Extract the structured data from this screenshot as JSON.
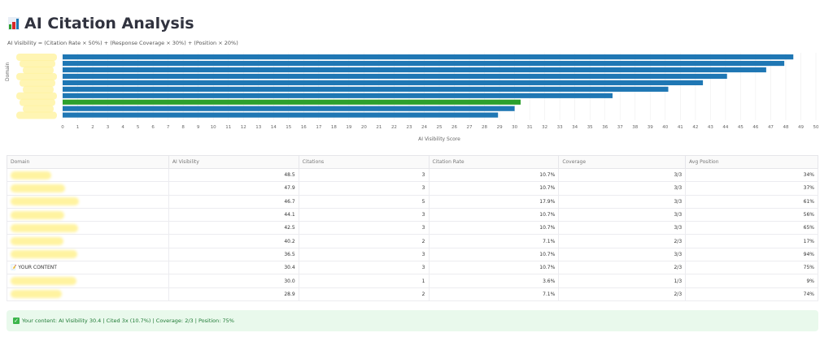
{
  "title": "AI Citation Analysis",
  "title_icon": "bar-chart-icon",
  "formula": "AI Visibility = (Citation Rate × 50%) + (Response Coverage × 30%) + (Position × 20%)",
  "colors": {
    "bar": "#1f77b4",
    "highlight": "#2ca02c",
    "banner_bg": "#e9f9ec",
    "banner_text": "#1f7a35"
  },
  "chart_data": {
    "type": "bar",
    "orientation": "horizontal",
    "xlabel": "AI Visibility Score",
    "ylabel": "Domain",
    "xlim": [
      0,
      50
    ],
    "ticks": [
      0,
      1,
      2,
      3,
      4,
      5,
      6,
      7,
      8,
      9,
      10,
      11,
      12,
      13,
      14,
      15,
      16,
      17,
      18,
      19,
      20,
      21,
      22,
      23,
      24,
      25,
      26,
      27,
      28,
      29,
      30,
      31,
      32,
      33,
      34,
      35,
      36,
      37,
      38,
      39,
      40,
      41,
      42,
      43,
      44,
      45,
      46,
      47,
      48,
      49,
      50
    ],
    "values": [
      48.5,
      47.9,
      46.7,
      44.1,
      42.5,
      40.2,
      36.5,
      30.4,
      30.0,
      28.9
    ],
    "highlight_index": 7,
    "grid": true
  },
  "table": {
    "headers": [
      "Domain",
      "AI Visibility",
      "Citations",
      "Citation Rate",
      "Coverage",
      "Avg Position"
    ],
    "rows": [
      {
        "domain": "",
        "redacted": true,
        "vis": "48.5",
        "cit": "3",
        "rate": "10.7%",
        "cov": "3/3",
        "pos": "34%"
      },
      {
        "domain": "",
        "redacted": true,
        "vis": "47.9",
        "cit": "3",
        "rate": "10.7%",
        "cov": "3/3",
        "pos": "37%"
      },
      {
        "domain": "",
        "redacted": true,
        "vis": "46.7",
        "cit": "5",
        "rate": "17.9%",
        "cov": "3/3",
        "pos": "61%"
      },
      {
        "domain": "",
        "redacted": true,
        "vis": "44.1",
        "cit": "3",
        "rate": "10.7%",
        "cov": "3/3",
        "pos": "56%"
      },
      {
        "domain": "",
        "redacted": true,
        "vis": "42.5",
        "cit": "3",
        "rate": "10.7%",
        "cov": "3/3",
        "pos": "65%"
      },
      {
        "domain": "",
        "redacted": true,
        "vis": "40.2",
        "cit": "2",
        "rate": "7.1%",
        "cov": "2/3",
        "pos": "17%"
      },
      {
        "domain": "",
        "redacted": true,
        "vis": "36.5",
        "cit": "3",
        "rate": "10.7%",
        "cov": "3/3",
        "pos": "94%"
      },
      {
        "domain": "📝 YOUR CONTENT",
        "redacted": false,
        "vis": "30.4",
        "cit": "3",
        "rate": "10.7%",
        "cov": "2/3",
        "pos": "75%"
      },
      {
        "domain": "",
        "redacted": true,
        "vis": "30.0",
        "cit": "1",
        "rate": "3.6%",
        "cov": "1/3",
        "pos": "9%"
      },
      {
        "domain": "",
        "redacted": true,
        "vis": "28.9",
        "cit": "2",
        "rate": "7.1%",
        "cov": "2/3",
        "pos": "74%"
      }
    ]
  },
  "banner": {
    "icon": "check-icon",
    "text": "Your content: AI Visibility 30.4 | Cited 3x (10.7%) | Coverage: 2/3 | Position: 75%"
  }
}
